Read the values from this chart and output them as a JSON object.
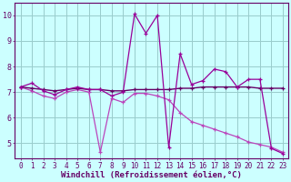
{
  "x": [
    0,
    1,
    2,
    3,
    4,
    5,
    6,
    7,
    8,
    9,
    10,
    11,
    12,
    13,
    14,
    15,
    16,
    17,
    18,
    19,
    20,
    21,
    22,
    23
  ],
  "line1": [
    7.2,
    7.35,
    7.05,
    6.9,
    7.1,
    7.2,
    7.1,
    7.1,
    6.85,
    7.0,
    10.05,
    9.3,
    10.0,
    4.85,
    8.5,
    7.3,
    7.45,
    7.9,
    7.8,
    7.2,
    7.5,
    7.5,
    4.8,
    4.6
  ],
  "line2": [
    7.2,
    7.15,
    7.1,
    7.05,
    7.1,
    7.15,
    7.1,
    7.1,
    7.05,
    7.05,
    7.1,
    7.1,
    7.1,
    7.1,
    7.15,
    7.15,
    7.2,
    7.2,
    7.2,
    7.2,
    7.2,
    7.15,
    7.15,
    7.15
  ],
  "line3": [
    7.2,
    7.05,
    6.85,
    6.75,
    7.0,
    7.1,
    7.0,
    4.65,
    6.75,
    6.6,
    6.95,
    6.95,
    6.85,
    6.7,
    6.2,
    5.85,
    5.7,
    5.55,
    5.4,
    5.25,
    5.05,
    4.95,
    4.85,
    4.65
  ],
  "line_color1": "#990099",
  "line_color2": "#660066",
  "line_color3": "#bb44bb",
  "bg_color": "#ccffff",
  "grid_color": "#99cccc",
  "xlabel": "Windchill (Refroidissement éolien,°C)",
  "ylabel_ticks": [
    5,
    6,
    7,
    8,
    9,
    10
  ],
  "xlim": [
    -0.5,
    23.5
  ],
  "ylim": [
    4.4,
    10.5
  ],
  "axis_color": "#660066",
  "tick_fontsize_x": 5.5,
  "tick_fontsize_y": 6,
  "xlabel_fontsize": 6.5
}
